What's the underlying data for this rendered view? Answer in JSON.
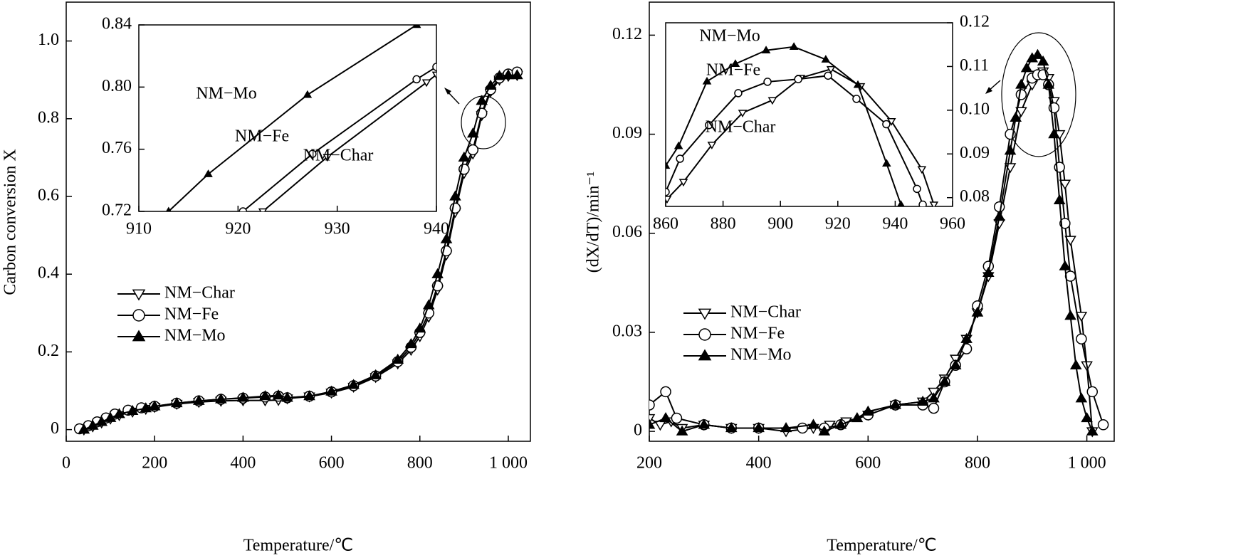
{
  "chart_data": [
    {
      "type": "line",
      "xlabel": "Temperature/℃",
      "ylabel": "Carbon conversion X",
      "xlim": [
        0,
        1050
      ],
      "ylim": [
        -0.03,
        1.1
      ],
      "xticks": [
        0,
        200,
        400,
        600,
        800,
        {
          "value": 1000,
          "label": "1 000"
        }
      ],
      "yticks": [
        0,
        0.2,
        0.4,
        0.6,
        0.8,
        {
          "value": 1,
          "label": "1.0"
        }
      ],
      "legend": "center-left",
      "series": [
        {
          "name": "NM−Char",
          "color": "#000000",
          "marker": "triangle-down-open",
          "x": [
            40,
            60,
            80,
            100,
            120,
            150,
            180,
            200,
            250,
            300,
            350,
            400,
            450,
            480,
            500,
            550,
            600,
            650,
            700,
            750,
            780,
            800,
            820,
            840,
            860,
            880,
            900,
            920,
            940,
            960,
            980,
            1000,
            1020
          ],
          "values": [
            0.0,
            0.008,
            0.018,
            0.028,
            0.037,
            0.046,
            0.053,
            0.058,
            0.066,
            0.071,
            0.074,
            0.075,
            0.075,
            0.076,
            0.08,
            0.085,
            0.095,
            0.11,
            0.135,
            0.17,
            0.205,
            0.24,
            0.29,
            0.36,
            0.45,
            0.56,
            0.66,
            0.71,
            0.809,
            0.87,
            0.9,
            0.91,
            0.912
          ]
        },
        {
          "name": "NM−Fe",
          "color": "#000000",
          "marker": "circle-open",
          "x": [
            30,
            50,
            70,
            90,
            110,
            140,
            170,
            200,
            250,
            300,
            350,
            400,
            450,
            480,
            500,
            550,
            600,
            650,
            700,
            750,
            780,
            800,
            820,
            840,
            860,
            880,
            900,
            920,
            940,
            960,
            980,
            1000,
            1020
          ],
          "values": [
            0.002,
            0.01,
            0.02,
            0.03,
            0.04,
            0.05,
            0.056,
            0.06,
            0.068,
            0.074,
            0.078,
            0.081,
            0.084,
            0.086,
            0.082,
            0.086,
            0.097,
            0.113,
            0.138,
            0.175,
            0.212,
            0.25,
            0.3,
            0.37,
            0.46,
            0.57,
            0.67,
            0.72,
            0.814,
            0.875,
            0.905,
            0.915,
            0.92
          ]
        },
        {
          "name": "NM−Mo",
          "color": "#000000",
          "marker": "triangle-up-filled",
          "x": [
            40,
            60,
            80,
            100,
            120,
            150,
            180,
            200,
            250,
            300,
            350,
            400,
            450,
            480,
            500,
            550,
            600,
            650,
            700,
            750,
            780,
            800,
            820,
            840,
            860,
            880,
            900,
            920,
            940,
            960,
            980,
            1000,
            1020
          ],
          "values": [
            0.0,
            0.01,
            0.02,
            0.03,
            0.04,
            0.048,
            0.055,
            0.06,
            0.068,
            0.074,
            0.078,
            0.082,
            0.086,
            0.088,
            0.082,
            0.086,
            0.098,
            0.115,
            0.14,
            0.18,
            0.22,
            0.26,
            0.32,
            0.4,
            0.49,
            0.6,
            0.7,
            0.762,
            0.846,
            0.885,
            0.91,
            0.912,
            0.912
          ]
        }
      ]
    },
    {
      "type": "line",
      "xlim": [
        910,
        940
      ],
      "ylim": [
        0.72,
        0.84
      ],
      "xticks": [
        910,
        920,
        930,
        940
      ],
      "yticks": [
        0.72,
        0.76,
        {
          "value": 0.8,
          "label": "0.80"
        },
        0.84
      ],
      "series": [
        {
          "name": "NM−Char",
          "color": "#000000",
          "marker": "triangle-down-open",
          "x": [
            922.5,
            929,
            939,
            940
          ],
          "values": [
            0.72,
            0.755,
            0.803,
            0.808
          ]
        },
        {
          "name": "NM−Fe",
          "color": "#000000",
          "marker": "circle-open",
          "x": [
            920.5,
            927.5,
            938,
            940
          ],
          "values": [
            0.72,
            0.757,
            0.805,
            0.813
          ]
        },
        {
          "name": "NM−Mo",
          "color": "#000000",
          "marker": "triangle-up-filled",
          "x": [
            913,
            917,
            927,
            938
          ],
          "values": [
            0.72,
            0.744,
            0.795,
            0.84
          ]
        }
      ]
    },
    {
      "type": "line",
      "xlabel": "Temperature/℃",
      "ylabel": "(dX/dT)/min⁻¹",
      "xlim": [
        200,
        1050
      ],
      "ylim": [
        -0.003,
        0.13
      ],
      "xticks": [
        200,
        400,
        600,
        800,
        {
          "value": 1000,
          "label": "1 000"
        }
      ],
      "yticks": [
        0,
        0.03,
        0.06,
        0.09,
        0.12
      ],
      "legend": "lower-left",
      "series": [
        {
          "name": "NM−Char",
          "color": "#000000",
          "marker": "triangle-down-open",
          "x": [
            200,
            220,
            240,
            260,
            300,
            350,
            400,
            450,
            500,
            530,
            560,
            600,
            650,
            700,
            720,
            740,
            760,
            780,
            800,
            820,
            840,
            860,
            880,
            900,
            910,
            920,
            930,
            940,
            950,
            960,
            970,
            990,
            1000,
            1010
          ],
          "values": [
            0.004,
            0.002,
            0.003,
            0.001,
            0.002,
            0.001,
            0.001,
            0.0,
            0.001,
            0.002,
            0.003,
            0.005,
            0.008,
            0.009,
            0.012,
            0.016,
            0.022,
            0.028,
            0.036,
            0.047,
            0.063,
            0.08,
            0.097,
            0.105,
            0.108,
            0.109,
            0.107,
            0.1,
            0.09,
            0.075,
            0.058,
            0.035,
            0.02,
            0.0
          ]
        },
        {
          "name": "NM−Fe",
          "color": "#000000",
          "marker": "circle-open",
          "x": [
            200,
            230,
            250,
            300,
            350,
            400,
            480,
            520,
            550,
            600,
            650,
            700,
            720,
            740,
            760,
            780,
            800,
            820,
            840,
            860,
            880,
            900,
            910,
            920,
            930,
            940,
            950,
            960,
            970,
            990,
            1010,
            1030
          ],
          "values": [
            0.008,
            0.012,
            0.004,
            0.002,
            0.001,
            0.001,
            0.001,
            0.001,
            0.002,
            0.005,
            0.008,
            0.008,
            0.007,
            0.015,
            0.02,
            0.025,
            0.038,
            0.05,
            0.068,
            0.09,
            0.102,
            0.107,
            0.108,
            0.108,
            0.105,
            0.098,
            0.08,
            0.063,
            0.047,
            0.028,
            0.012,
            0.002
          ]
        },
        {
          "name": "NM−Mo",
          "color": "#000000",
          "marker": "triangle-up-filled",
          "x": [
            200,
            230,
            260,
            300,
            350,
            400,
            450,
            500,
            520,
            550,
            580,
            600,
            650,
            700,
            720,
            740,
            760,
            780,
            800,
            820,
            840,
            860,
            870,
            880,
            890,
            900,
            910,
            920,
            930,
            940,
            950,
            960,
            970,
            980,
            990,
            1000,
            1010
          ],
          "values": [
            0.002,
            0.004,
            0.0,
            0.002,
            0.001,
            0.001,
            0.001,
            0.002,
            0.0,
            0.002,
            0.004,
            0.006,
            0.008,
            0.009,
            0.01,
            0.015,
            0.02,
            0.028,
            0.036,
            0.048,
            0.065,
            0.085,
            0.095,
            0.105,
            0.11,
            0.113,
            0.114,
            0.112,
            0.105,
            0.09,
            0.07,
            0.05,
            0.035,
            0.02,
            0.01,
            0.004,
            0.0
          ]
        }
      ]
    },
    {
      "type": "line",
      "xlim": [
        860,
        960
      ],
      "ylim": [
        0.078,
        0.12
      ],
      "yaxis": "right",
      "xticks": [
        860,
        880,
        900,
        920,
        940,
        960
      ],
      "yticks": [
        0.08,
        0.09,
        {
          "value": 0.1,
          "label": "0.10"
        },
        0.11,
        0.12
      ],
      "series": [
        {
          "name": "NM−Char",
          "color": "#000000",
          "marker": "triangle-down-open",
          "x": [
            860.5,
            866.2,
            876.1,
            886.8,
            897.2,
            907.1,
            917.6,
            928,
            938.7,
            949.3,
            953.5
          ],
          "values": [
            0.0797,
            0.0836,
            0.0921,
            0.0994,
            0.1023,
            0.1074,
            0.1094,
            0.1055,
            0.0975,
            0.0865,
            0.0784
          ]
        },
        {
          "name": "NM−Fe",
          "color": "#000000",
          "marker": "circle-open",
          "x": [
            860,
            865,
            875.1,
            885.3,
            895.5,
            906.2,
            916.6,
            926.5,
            936.9,
            947.6,
            949.6
          ],
          "values": [
            0.0813,
            0.0889,
            0.0966,
            0.1039,
            0.1065,
            0.1071,
            0.1079,
            0.1026,
            0.0968,
            0.082,
            0.0784
          ]
        },
        {
          "name": "NM−Mo",
          "color": "#000000",
          "marker": "triangle-up-filled",
          "x": [
            860,
            864.5,
            874.4,
            884.3,
            895,
            904.7,
            915.8,
            927,
            937,
            942
          ],
          "values": [
            0.0873,
            0.0918,
            0.1066,
            0.1106,
            0.1137,
            0.1145,
            0.1116,
            0.1058,
            0.0878,
            0.0784
          ]
        }
      ]
    }
  ]
}
